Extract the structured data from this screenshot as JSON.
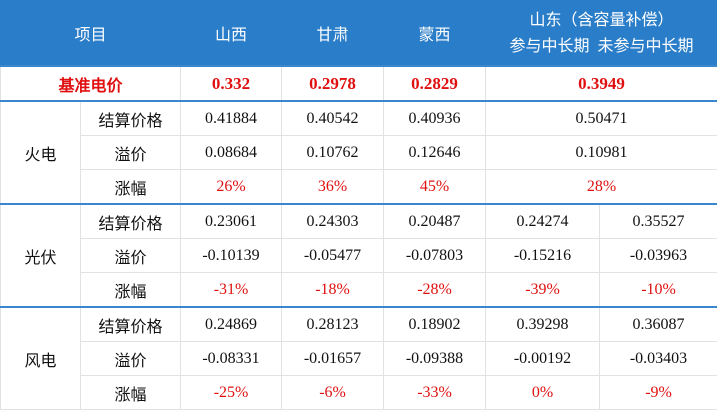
{
  "header": {
    "item": "项目",
    "columns": [
      "山西",
      "甘肃",
      "蒙西"
    ],
    "shandong": {
      "title": "山东（含容量补偿）",
      "sub": [
        "参与中长期",
        "未参与中长期"
      ]
    }
  },
  "base_price": {
    "label": "基准电价",
    "values": [
      "0.332",
      "0.2978",
      "0.2829",
      "0.3949"
    ]
  },
  "groups": [
    {
      "name": "火电",
      "rows": [
        {
          "label": "结算价格",
          "values": [
            "0.41884",
            "0.40542",
            "0.40936",
            "0.50471"
          ]
        },
        {
          "label": "溢价",
          "values": [
            "0.08684",
            "0.10762",
            "0.12646",
            "0.10981"
          ]
        },
        {
          "label": "涨幅",
          "values": [
            "26%",
            "36%",
            "45%",
            "28%"
          ]
        }
      ]
    },
    {
      "name": "光伏",
      "rows": [
        {
          "label": "结算价格",
          "values": [
            "0.23061",
            "0.24303",
            "0.20487",
            "0.24274",
            "0.35527"
          ]
        },
        {
          "label": "溢价",
          "values": [
            "-0.10139",
            "-0.05477",
            "-0.07803",
            "-0.15216",
            "-0.03963"
          ]
        },
        {
          "label": "涨幅",
          "values": [
            "-31%",
            "-18%",
            "-28%",
            "-39%",
            "-10%"
          ]
        }
      ]
    },
    {
      "name": "风电",
      "rows": [
        {
          "label": "结算价格",
          "values": [
            "0.24869",
            "0.28123",
            "0.18902",
            "0.39298",
            "0.36087"
          ]
        },
        {
          "label": "溢价",
          "values": [
            "-0.08331",
            "-0.01657",
            "-0.09388",
            "-0.00192",
            "-0.03403"
          ]
        },
        {
          "label": "涨幅",
          "values": [
            "-25%",
            "-6%",
            "-33%",
            "0%",
            "-9%"
          ]
        }
      ]
    }
  ]
}
